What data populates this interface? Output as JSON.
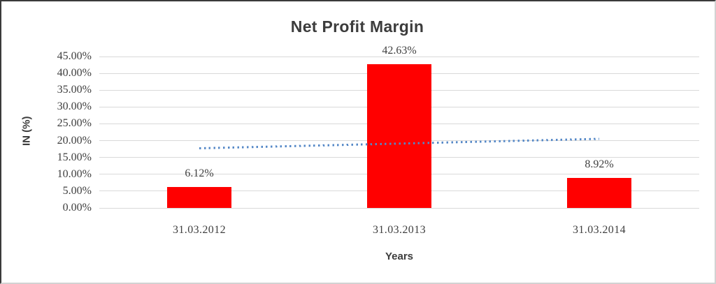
{
  "chart_data": {
    "type": "bar",
    "title": "Net Profit Margin",
    "xlabel": "Years",
    "ylabel": "IN (%)",
    "categories": [
      "31.03.2012",
      "31.03.2013",
      "31.03.2014"
    ],
    "series": [
      {
        "name": "Net Profit Margin",
        "type": "bar",
        "values": [
          6.12,
          42.63,
          8.92
        ],
        "data_labels": [
          "6.12%",
          "42.63%",
          "8.92%"
        ],
        "color": "#ff0000"
      },
      {
        "name": "trendline",
        "type": "dotted-line",
        "values": [
          17.82,
          19.22,
          20.62
        ],
        "color": "#5588c7"
      }
    ],
    "ylim": [
      0,
      45
    ],
    "ytick_step": 5,
    "ytick_labels_top_to_bottom": [
      "45.00%",
      "40.00%",
      "35.00%",
      "30.00%",
      "25.00%",
      "20.00%",
      "15.00%",
      "10.00%",
      "5.00%",
      "0.00%"
    ],
    "grid": true,
    "legend": "none",
    "colors": {
      "grid": "#d9d9d9",
      "text": "#3f3f3f",
      "title": "#3c3c3c",
      "bar": "#ff0000",
      "trend": "#5588c7",
      "background": "#ffffff"
    }
  }
}
